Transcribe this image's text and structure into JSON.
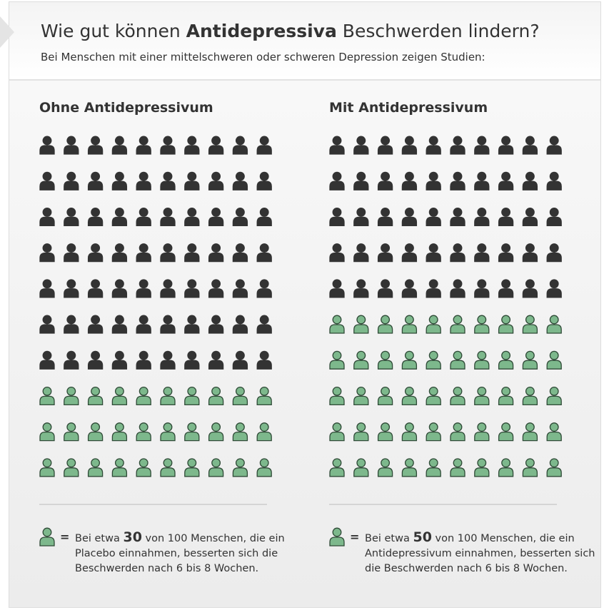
{
  "header": {
    "title_before": "Wie gut können ",
    "title_bold": "Antidepressiva",
    "title_after": " Beschwerden lindern?",
    "subtitle": "Bei Menschen mit einer mittelschweren oder schweren Depression zeigen Studien:"
  },
  "panels": [
    {
      "title": "Ohne Antidepressivum",
      "total": 100,
      "improved": 30,
      "legend": {
        "before": "Bei etwa ",
        "middle": " von ",
        "after": " Menschen, die ein Placebo einnahmen, besserten sich die Beschwerden nach 6 bis 8 Wochen."
      }
    },
    {
      "title": "Mit Antidepressivum",
      "total": 100,
      "improved": 50,
      "legend": {
        "before": "Bei etwa ",
        "middle": " von ",
        "after": " Menschen, die ein Antidepressivum einnahmen, besserten sich die Beschwerden nach 6 bis 8 Wochen."
      }
    }
  ],
  "equals": "="
}
